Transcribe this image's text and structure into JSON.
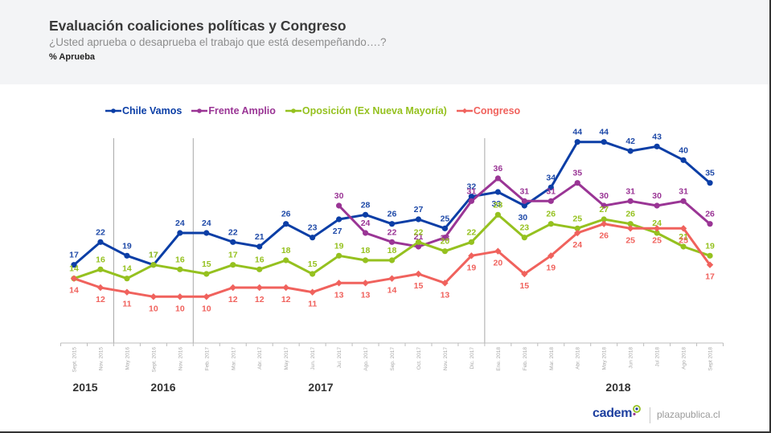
{
  "header": {
    "title": "Evaluación coaliciones políticas y Congreso",
    "subtitle": "¿Usted aprueba o desaprueba el trabajo que está desempeñando….?",
    "measure": "% Aprueba"
  },
  "chart_data": {
    "type": "line",
    "title": "Evaluación coaliciones políticas y Congreso",
    "subtitle": "¿Usted aprueba o desaprueba el trabajo que está desempeñando….?",
    "xlabel": "",
    "ylabel": "% Aprueba",
    "ylim": [
      0,
      45
    ],
    "grid": false,
    "legend_position": "top",
    "categories": [
      "Sept. 2015",
      "Nov. 2015",
      "May 2016",
      "Sept. 2016",
      "Nov. 2016",
      "Feb. 2017",
      "Mar. 2017",
      "Abr. 2017",
      "May 2017",
      "Jun. 2017",
      "Jul. 2017",
      "Ago. 2017",
      "Sep. 2017",
      "Oct. 2017",
      "Nov. 2017",
      "Dic. 2017",
      "Ene. 2018",
      "Feb. 2018",
      "Mar. 2018",
      "Abr. 2018",
      "May 2018",
      "Jun 2018",
      "Jul 2018",
      "Ago 2018",
      "Sept 2018"
    ],
    "year_groups": [
      {
        "label": "2015",
        "count": 2
      },
      {
        "label": "2016",
        "count": 3
      },
      {
        "label": "2017",
        "count": 11
      },
      {
        "label": "2018",
        "count": 9
      }
    ],
    "series": [
      {
        "name": "Chile Vamos",
        "color": "#0b3ea6",
        "label_color": "#1f4aa8",
        "marker": "circle",
        "label_position": "above",
        "values": [
          17,
          22,
          19,
          17,
          24,
          24,
          22,
          21,
          26,
          23,
          27,
          28,
          26,
          27,
          25,
          32,
          33,
          30,
          34,
          44,
          44,
          42,
          43,
          40,
          35
        ]
      },
      {
        "name": "Frente Amplio",
        "color": "#9a3595",
        "label_color": "#9a3595",
        "marker": "circle",
        "label_position": "above",
        "values": [
          null,
          null,
          null,
          null,
          null,
          null,
          null,
          null,
          null,
          null,
          30,
          24,
          22,
          21,
          23,
          31,
          36,
          31,
          31,
          35,
          30,
          31,
          30,
          31,
          26
        ]
      },
      {
        "name": "Oposición (Ex Nueva Mayoría)",
        "color": "#95c11f",
        "label_color": "#95c11f",
        "marker": "circle",
        "label_position": "above",
        "values": [
          14,
          16,
          14,
          17,
          16,
          15,
          17,
          16,
          18,
          15,
          19,
          18,
          18,
          22,
          20,
          22,
          28,
          23,
          26,
          25,
          27,
          26,
          24,
          21,
          19
        ]
      },
      {
        "name": "Congreso",
        "color": "#f0625d",
        "label_color": "#f0625d",
        "marker": "diamond",
        "label_position": "below",
        "values": [
          14,
          12,
          11,
          10,
          10,
          10,
          12,
          12,
          12,
          11,
          13,
          13,
          14,
          15,
          13,
          19,
          20,
          15,
          19,
          24,
          26,
          25,
          25,
          25,
          17
        ]
      }
    ]
  },
  "footer": {
    "brand": "cadem",
    "brand_icon": "cadem-logo-ring-icon",
    "source": "plazapublica.cl"
  }
}
